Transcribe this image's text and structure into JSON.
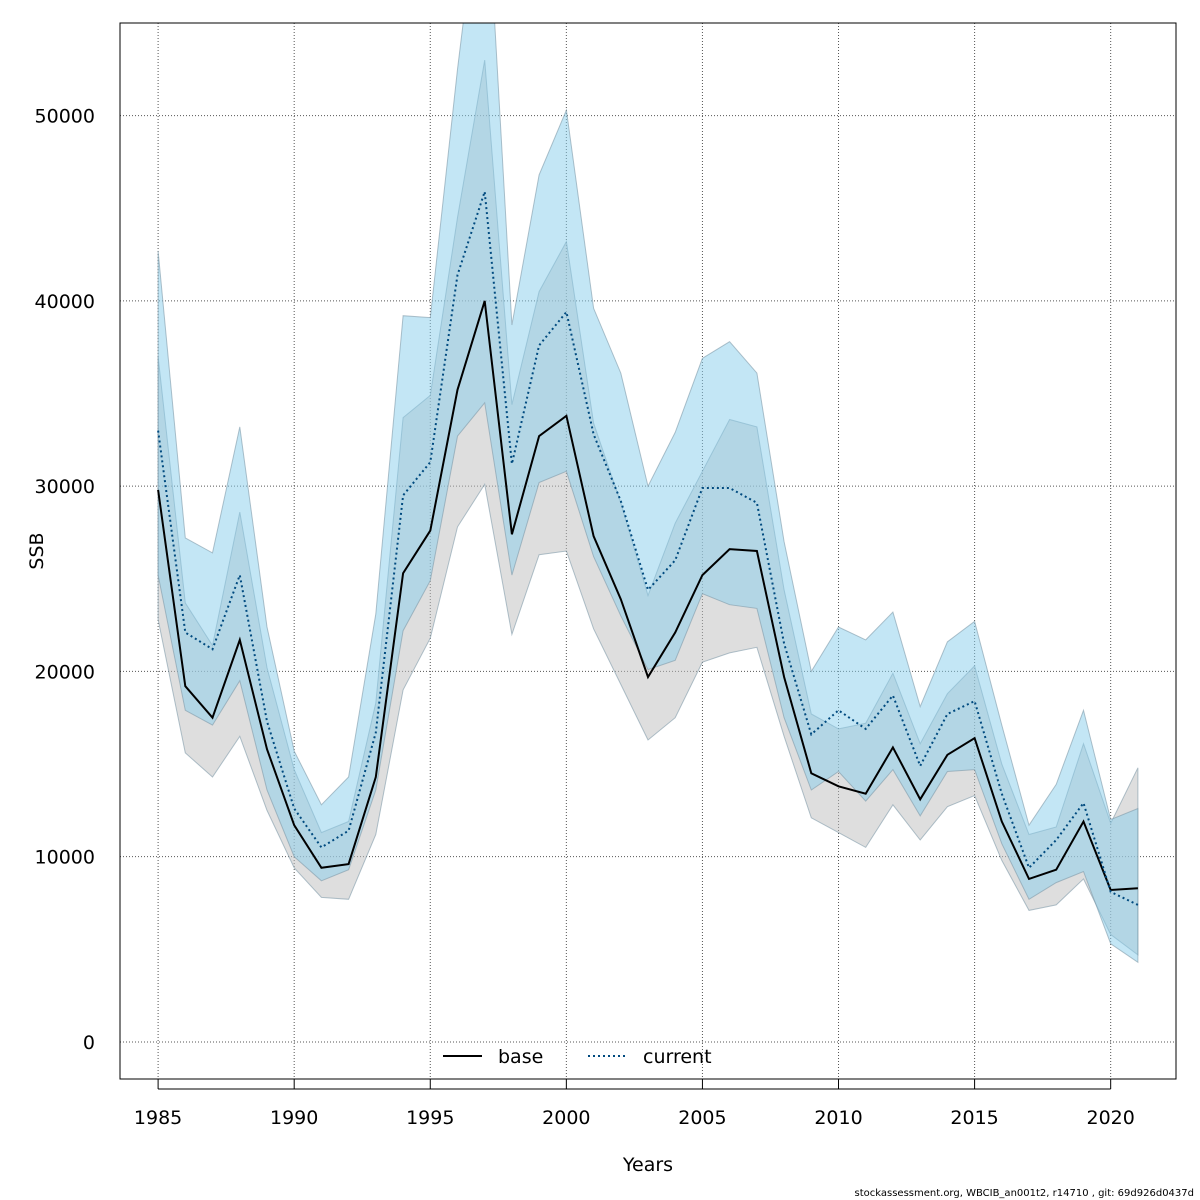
{
  "chart_data": {
    "type": "line",
    "title": "",
    "xlabel": "Years",
    "ylabel": "SSB",
    "xlim": [
      1983.6,
      2022.4
    ],
    "ylim": [
      -2000,
      55000
    ],
    "x_ticks": [
      1985,
      1990,
      1995,
      2000,
      2005,
      2010,
      2015,
      2020
    ],
    "y_ticks": [
      0,
      10000,
      20000,
      30000,
      40000,
      50000
    ],
    "grid": true,
    "legend_position": "bottom-center",
    "x": [
      1985,
      1986,
      1987,
      1988,
      1989,
      1990,
      1991,
      1992,
      1993,
      1994,
      1995,
      1996,
      1997,
      1998,
      1999,
      2000,
      2001,
      2002,
      2003,
      2004,
      2005,
      2006,
      2007,
      2008,
      2009,
      2010,
      2011,
      2012,
      2013,
      2014,
      2015,
      2016,
      2017,
      2018,
      2019,
      2020,
      2021
    ],
    "series": [
      {
        "name": "base",
        "line_color": "#000000",
        "band_color": "#bdbdbd",
        "values": [
          29800,
          19200,
          17500,
          21700,
          15800,
          11700,
          9400,
          9600,
          14300,
          25300,
          27600,
          35200,
          40000,
          27400,
          32700,
          33800,
          27300,
          23900,
          19700,
          22100,
          25200,
          26600,
          26500,
          19700,
          14500,
          13800,
          13400,
          15900,
          13100,
          15500,
          16400,
          11900,
          8800,
          9300,
          11900,
          8200,
          8300
        ],
        "lower": [
          22800,
          15600,
          14300,
          16500,
          12500,
          9400,
          7800,
          7700,
          11200,
          19000,
          21800,
          27800,
          30100,
          22000,
          26300,
          26500,
          22300,
          19300,
          16300,
          17500,
          20500,
          21000,
          21300,
          16500,
          12100,
          11300,
          10500,
          12800,
          10900,
          12700,
          13300,
          9800,
          7100,
          7400,
          8800,
          5800,
          4700
        ],
        "upper": [
          37000,
          23700,
          21400,
          28600,
          20200,
          14700,
          11300,
          11900,
          18300,
          33700,
          34900,
          44500,
          53000,
          34400,
          40500,
          43200,
          33400,
          29100,
          24100,
          28000,
          30800,
          33600,
          33200,
          24400,
          17700,
          16900,
          17200,
          19900,
          16100,
          18800,
          20300,
          15000,
          11200,
          11600,
          16100,
          11800,
          14800
        ]
      },
      {
        "name": "current",
        "line_color": "#004a7f",
        "band_color": "#87ceeb",
        "values": [
          33000,
          22100,
          21200,
          25200,
          17300,
          12600,
          10500,
          11400,
          16700,
          29500,
          31300,
          41400,
          45900,
          31200,
          37600,
          39400,
          32800,
          29200,
          24400,
          26000,
          29900,
          29900,
          29100,
          21500,
          16600,
          17900,
          16900,
          18700,
          14900,
          17700,
          18400,
          13400,
          9400,
          10900,
          12900,
          8100,
          7400
        ],
        "lower": [
          25200,
          17900,
          17100,
          19500,
          13600,
          10000,
          8700,
          9300,
          13600,
          22200,
          24900,
          32700,
          34500,
          25200,
          30200,
          30800,
          26200,
          23000,
          20100,
          20600,
          24200,
          23600,
          23400,
          17500,
          13600,
          14600,
          13000,
          14700,
          12200,
          14600,
          14700,
          10700,
          7700,
          8600,
          9200,
          5300,
          4300
        ],
        "upper": [
          42700,
          27200,
          26400,
          33200,
          22400,
          15700,
          12800,
          14300,
          23100,
          39200,
          39100,
          52500,
          64500,
          38700,
          46800,
          50300,
          39600,
          36100,
          30000,
          32900,
          36900,
          37800,
          36100,
          27000,
          20000,
          22400,
          21700,
          23200,
          18100,
          21600,
          22700,
          17100,
          11700,
          13900,
          17900,
          12000,
          12600
        ]
      }
    ]
  },
  "legend": {
    "items": [
      {
        "label": "base",
        "line_color": "#000000",
        "line_style": "solid"
      },
      {
        "label": "current",
        "line_color": "#004a7f",
        "line_style": "dotted"
      }
    ]
  },
  "footer": {
    "text": "stockassessment.org, WBCIB_an001t2, r14710 , git: 69d926d0437d"
  }
}
